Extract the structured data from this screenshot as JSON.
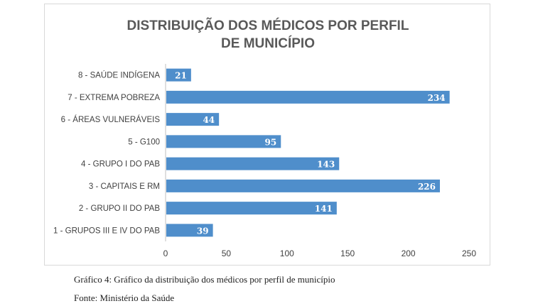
{
  "chart_data": {
    "type": "bar",
    "orientation": "horizontal",
    "title": "DISTRIBUIÇÃO DOS MÉDICOS POR PERFIL DE MUNICÍPIO",
    "categories": [
      "8 - SAÚDE INDÍGENA",
      "7 - EXTREMA POBREZA",
      "6 - ÁREAS VULNERÁVEIS",
      "5 - G100",
      "4 - GRUPO I DO PAB",
      "3 - CAPITAIS E RM",
      "2 - GRUPO II DO PAB",
      "1 - GRUPOS III E IV DO PAB"
    ],
    "values": [
      21,
      234,
      44,
      95,
      143,
      226,
      141,
      39
    ],
    "xlim": [
      0,
      250
    ],
    "xticks": [
      0,
      50,
      100,
      150,
      200,
      250
    ],
    "data_labels": true,
    "grid": false,
    "bar_color": "#4f8ecb",
    "label_color": "#ffffff"
  },
  "captions": {
    "figure": "Gráfico 4: Gráfico da distribuição dos médicos por perfil de município",
    "source": "Fonte: Ministério da Saúde"
  }
}
